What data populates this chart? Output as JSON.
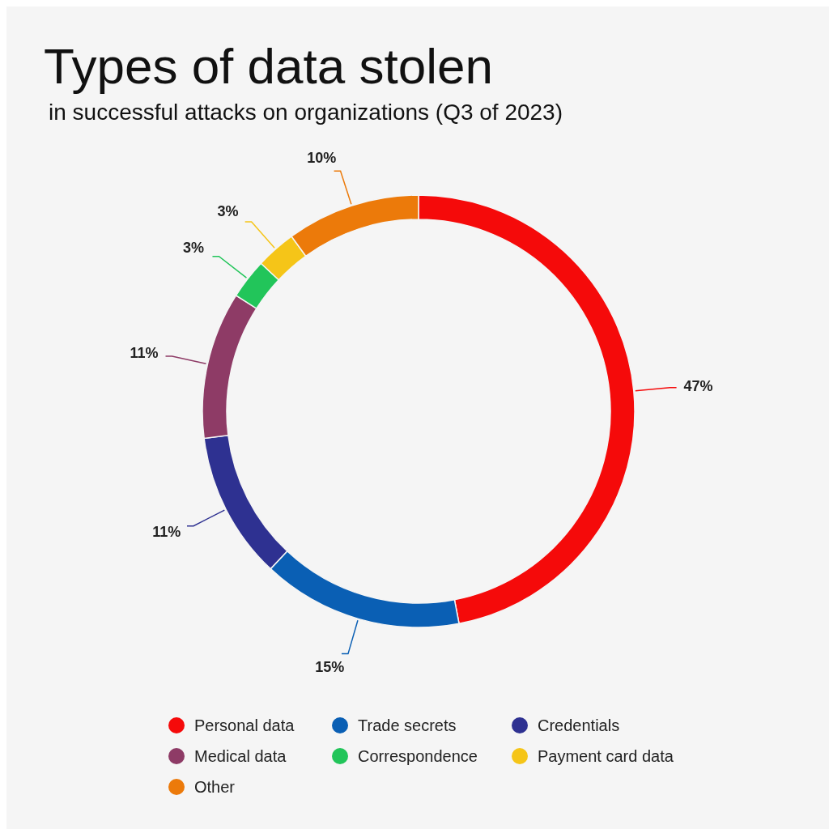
{
  "chart_data": {
    "type": "donut",
    "title": "Types of data stolen",
    "subtitle": "in successful attacks on organizations (Q3 of 2023)",
    "categories": [
      "Personal data",
      "Trade secrets",
      "Credentials",
      "Medical data",
      "Correspondence",
      "Payment card data",
      "Other"
    ],
    "values": [
      47,
      15,
      11,
      11,
      3,
      3,
      10
    ],
    "colors": [
      "#f50a0a",
      "#0a5fb4",
      "#2e3191",
      "#8e3b66",
      "#22c55a",
      "#f5c518",
      "#ec7a0a"
    ],
    "value_labels": [
      "47%",
      "15%",
      "11%",
      "11%",
      "3%",
      "3%",
      "10%"
    ],
    "legend": "bottom"
  }
}
